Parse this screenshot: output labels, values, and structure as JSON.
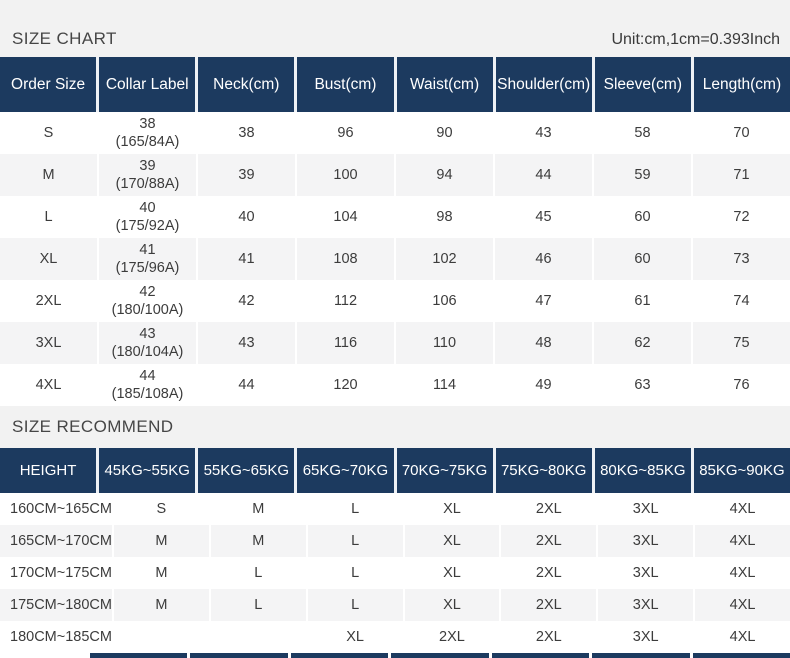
{
  "colors": {
    "header_bg": "#1c3a5f",
    "band_bg": "#f2f2f2",
    "alt_row_bg": "#f4f4f5",
    "header_text": "#ffffff",
    "body_text": "#3c3c3c"
  },
  "size_chart": {
    "title": "SIZE CHART",
    "unit_note": "Unit:cm,1cm=0.393Inch",
    "columns": [
      "Order Size",
      "Collar Label",
      "Neck(cm)",
      "Bust(cm)",
      "Waist(cm)",
      "Shoulder(cm)",
      "Sleeve(cm)",
      "Length(cm)"
    ],
    "rows": [
      {
        "order_size": "S",
        "collar_label": "38",
        "collar_note": "(165/84A)",
        "neck": "38",
        "bust": "96",
        "waist": "90",
        "shoulder": "43",
        "sleeve": "58",
        "length": "70"
      },
      {
        "order_size": "M",
        "collar_label": "39",
        "collar_note": "(170/88A)",
        "neck": "39",
        "bust": "100",
        "waist": "94",
        "shoulder": "44",
        "sleeve": "59",
        "length": "71"
      },
      {
        "order_size": "L",
        "collar_label": "40",
        "collar_note": "(175/92A)",
        "neck": "40",
        "bust": "104",
        "waist": "98",
        "shoulder": "45",
        "sleeve": "60",
        "length": "72"
      },
      {
        "order_size": "XL",
        "collar_label": "41",
        "collar_note": "(175/96A)",
        "neck": "41",
        "bust": "108",
        "waist": "102",
        "shoulder": "46",
        "sleeve": "60",
        "length": "73"
      },
      {
        "order_size": "2XL",
        "collar_label": "42",
        "collar_note": "(180/100A)",
        "neck": "42",
        "bust": "112",
        "waist": "106",
        "shoulder": "47",
        "sleeve": "61",
        "length": "74"
      },
      {
        "order_size": "3XL",
        "collar_label": "43",
        "collar_note": "(180/104A)",
        "neck": "43",
        "bust": "116",
        "waist": "110",
        "shoulder": "48",
        "sleeve": "62",
        "length": "75"
      },
      {
        "order_size": "4XL",
        "collar_label": "44",
        "collar_note": "(185/108A)",
        "neck": "44",
        "bust": "120",
        "waist": "114",
        "shoulder": "49",
        "sleeve": "63",
        "length": "76"
      }
    ]
  },
  "size_recommend": {
    "title": "SIZE RECOMMEND",
    "columns": [
      "HEIGHT",
      "45KG~55KG",
      "55KG~65KG",
      "65KG~70KG",
      "70KG~75KG",
      "75KG~80KG",
      "80KG~85KG",
      "85KG~90KG"
    ],
    "rows": [
      {
        "height": "160CM~165CM",
        "sizes": [
          "S",
          "M",
          "L",
          "XL",
          "2XL",
          "3XL",
          "4XL"
        ]
      },
      {
        "height": "165CM~170CM",
        "sizes": [
          "M",
          "M",
          "L",
          "XL",
          "2XL",
          "3XL",
          "4XL"
        ]
      },
      {
        "height": "170CM~175CM",
        "sizes": [
          "M",
          "L",
          "L",
          "XL",
          "2XL",
          "3XL",
          "4XL"
        ]
      },
      {
        "height": "175CM~180CM",
        "sizes": [
          "M",
          "L",
          "L",
          "XL",
          "2XL",
          "3XL",
          "4XL"
        ]
      },
      {
        "height": "180CM~185CM",
        "sizes": [
          "",
          "",
          "XL",
          "2XL",
          "2XL",
          "3XL",
          "4XL"
        ]
      }
    ]
  }
}
